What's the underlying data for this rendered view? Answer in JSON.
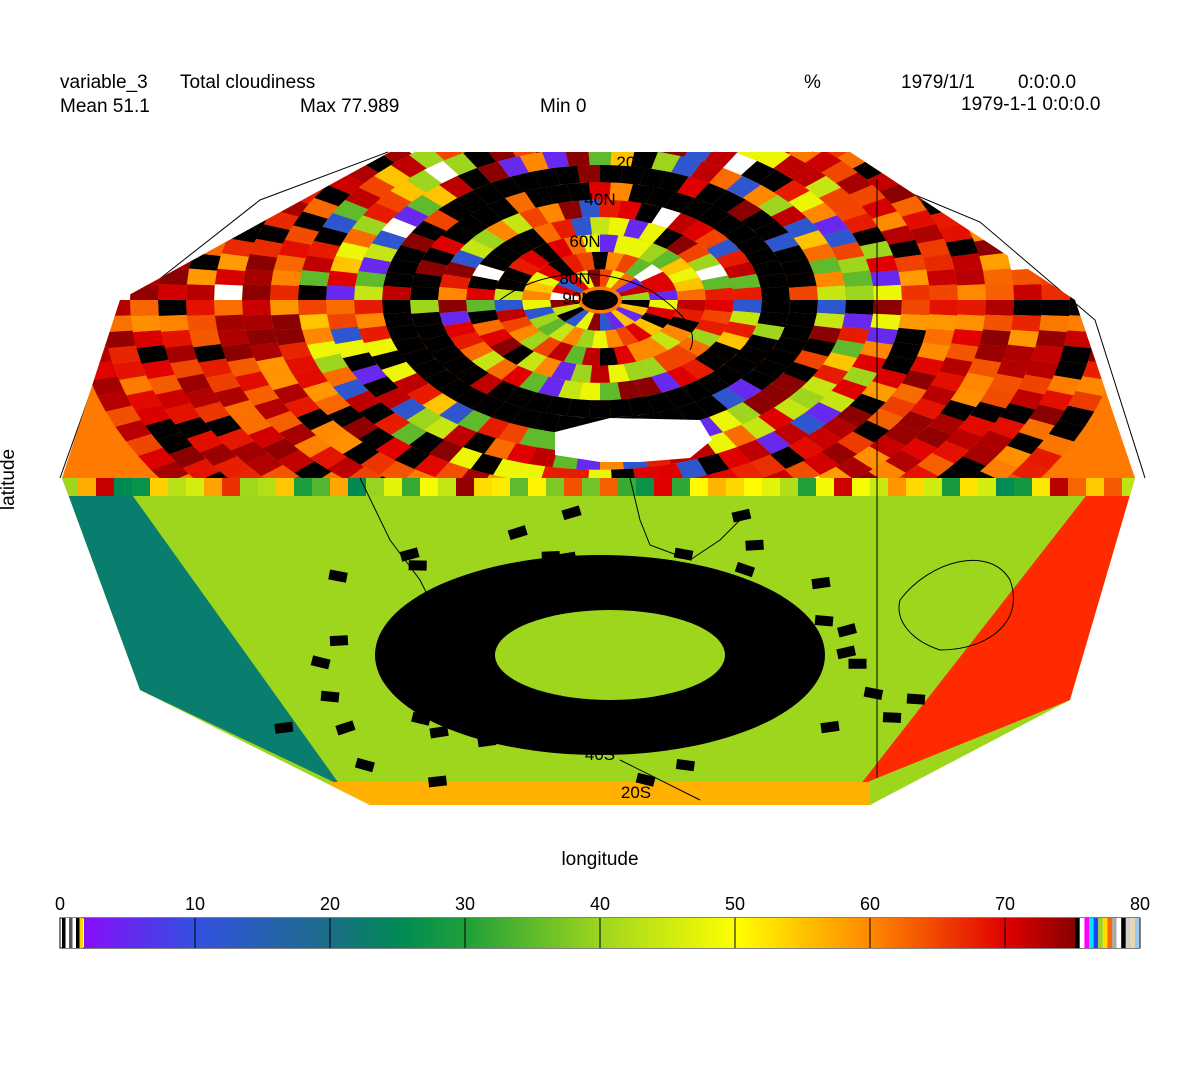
{
  "header": {
    "variable": "variable_3",
    "long_name": "Total cloudiness",
    "units": "%",
    "date": "1979/1/1",
    "time": "0:0:0.0",
    "timestamp": "1979-1-1 0:0:0.0",
    "mean_label": "Mean 51.1",
    "max_label": "Max 77.989",
    "min_label": "Min 0"
  },
  "map": {
    "projection": "polar-view globe (north pole top, south pole bottom)",
    "lat_labels_north": [
      "20N",
      "40N",
      "60N",
      "80N",
      "90N"
    ],
    "lat_labels_south": [
      "40S",
      "20S"
    ],
    "xlabel": "longitude",
    "ylabel": "latitude"
  },
  "colorbar": {
    "ticks": [
      "0",
      "10",
      "20",
      "30",
      "40",
      "50",
      "60",
      "70",
      "80"
    ],
    "min": 0,
    "max": 80,
    "stops": [
      {
        "v": 0,
        "c": "#9a00ff"
      },
      {
        "v": 10,
        "c": "#3350e0"
      },
      {
        "v": 20,
        "c": "#1a6e86"
      },
      {
        "v": 25,
        "c": "#008a55"
      },
      {
        "v": 30,
        "c": "#1fa03a"
      },
      {
        "v": 40,
        "c": "#9ed61e"
      },
      {
        "v": 50,
        "c": "#ffff00"
      },
      {
        "v": 60,
        "c": "#ff8800"
      },
      {
        "v": 70,
        "c": "#e00000"
      },
      {
        "v": 75,
        "c": "#8b0000"
      }
    ]
  },
  "chart_data": {
    "type": "heatmap",
    "title": "variable_3   Total cloudiness",
    "xlabel": "longitude",
    "ylabel": "latitude",
    "units": "%",
    "stats": {
      "mean": 51.1,
      "max": 77.989,
      "min": 0
    },
    "value_range": [
      0,
      80
    ]
  }
}
